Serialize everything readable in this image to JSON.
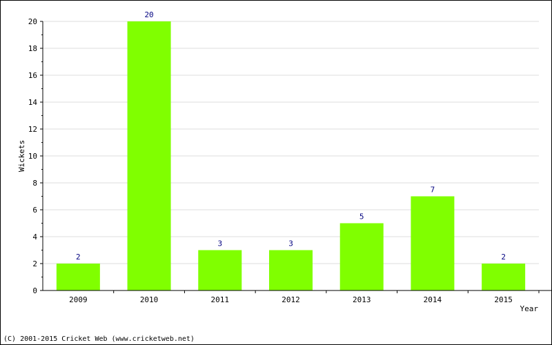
{
  "chart_data": {
    "type": "bar",
    "categories": [
      "2009",
      "2010",
      "2011",
      "2012",
      "2013",
      "2014",
      "2015"
    ],
    "values": [
      2,
      20,
      3,
      3,
      5,
      7,
      2
    ],
    "xlabel": "Year",
    "ylabel": "Wickets",
    "ylim": [
      0,
      20
    ],
    "yticks": [
      0,
      2,
      4,
      6,
      8,
      10,
      12,
      14,
      16,
      18,
      20
    ],
    "grid": true,
    "bar_color": "#80ff00"
  },
  "footer": {
    "copyright": "(C) 2001-2015 Cricket Web (www.cricketweb.net)"
  }
}
